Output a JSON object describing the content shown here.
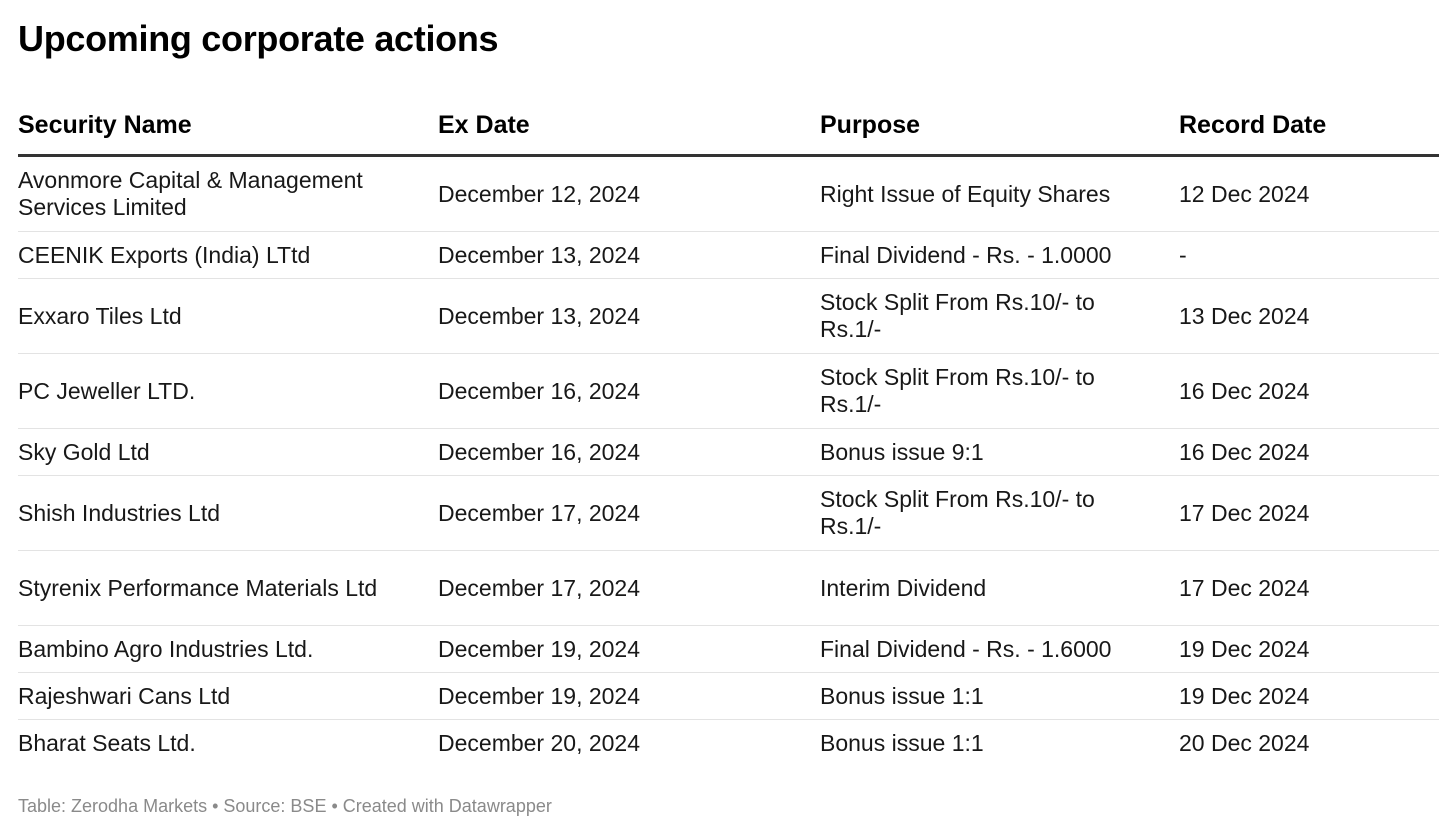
{
  "title": "Upcoming corporate actions",
  "table": {
    "columns": [
      "Security Name",
      "Ex Date",
      "Purpose",
      "Record Date"
    ],
    "rows": [
      [
        "Avonmore Capital & Management Services Limited",
        "December 12, 2024",
        "Right Issue of Equity Shares",
        "12 Dec 2024"
      ],
      [
        "CEENIK Exports (India) LTtd",
        "December 13, 2024",
        "Final Dividend - Rs. - 1.0000",
        "-"
      ],
      [
        "Exxaro Tiles Ltd",
        "December 13, 2024",
        "Stock Split From Rs.10/- to Rs.1/-",
        "13 Dec 2024"
      ],
      [
        "PC Jeweller LTD.",
        "December 16, 2024",
        "Stock Split From Rs.10/- to Rs.1/-",
        "16 Dec 2024"
      ],
      [
        "Sky Gold Ltd",
        "December 16, 2024",
        "Bonus issue 9:1",
        "16 Dec 2024"
      ],
      [
        "Shish Industries Ltd",
        "December 17, 2024",
        "Stock Split From Rs.10/- to Rs.1/-",
        "17 Dec 2024"
      ],
      [
        "Styrenix Performance Materials Ltd",
        "December 17, 2024",
        "Interim Dividend",
        "17 Dec 2024"
      ],
      [
        "Bambino Agro Industries Ltd.",
        "December 19, 2024",
        "Final Dividend - Rs. - 1.6000",
        "19 Dec 2024"
      ],
      [
        "Rajeshwari Cans Ltd",
        "December 19, 2024",
        "Bonus issue 1:1",
        "19 Dec 2024"
      ],
      [
        "Bharat Seats Ltd.",
        "December 20, 2024",
        "Bonus issue 1:1",
        "20 Dec 2024"
      ]
    ]
  },
  "footer": "Table: Zerodha Markets • Source: BSE • Created with Datawrapper"
}
